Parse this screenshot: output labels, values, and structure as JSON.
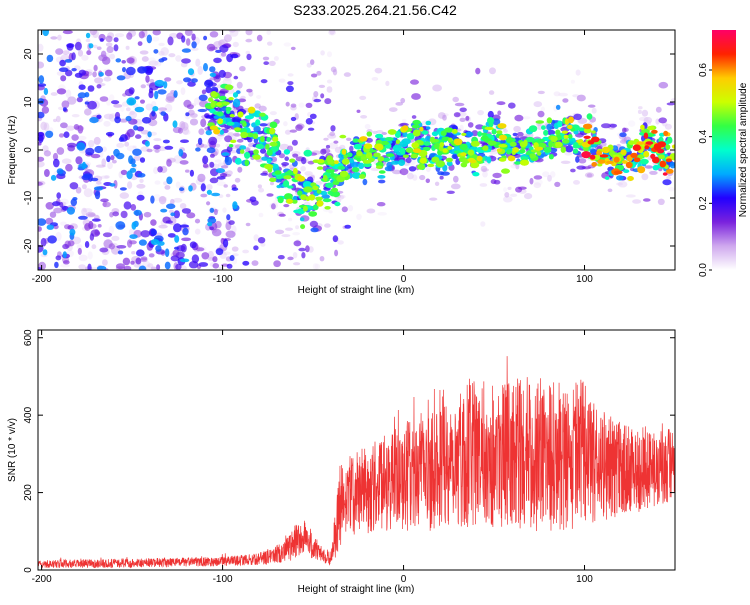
{
  "figure_title": "S233.2025.264.21.56.C42",
  "colors": {
    "snr_line": "#ee3333",
    "frame": "#000000"
  },
  "chart_data": [
    {
      "type": "heatmap",
      "name": "spectrogram",
      "title": "S233.2025.264.21.56.C42",
      "xlabel": "Height of straight line (km)",
      "ylabel": "Frequency (Hz)",
      "xlim": [
        -202,
        150
      ],
      "ylim": [
        -25,
        25
      ],
      "x_ticks": [
        -200,
        -100,
        0,
        100
      ],
      "y_ticks": [
        -20,
        -10,
        0,
        10,
        20
      ],
      "grid": false,
      "colorbar": {
        "label": "Normalized spectral amplitude",
        "range": [
          0.0,
          0.72
        ],
        "ticks": [
          0.0,
          0.2,
          0.4,
          0.6
        ],
        "tick_labels": [
          "0.0",
          "0.2",
          "0.4",
          "0.6"
        ],
        "colormap": [
          "#ffffff",
          "#cfa8ee",
          "#7a22dd",
          "#2200ff",
          "#00aaff",
          "#00ffcc",
          "#33ff44",
          "#ccff00",
          "#ffcc00",
          "#ff2200",
          "#ff0066"
        ]
      },
      "ridge_center_hz": [
        [
          -105,
          9
        ],
        [
          -95,
          6
        ],
        [
          -85,
          4
        ],
        [
          -78,
          3
        ],
        [
          -72,
          -1
        ],
        [
          -68,
          -4
        ],
        [
          -64,
          -6
        ],
        [
          -58,
          -7
        ],
        [
          -52,
          -9
        ],
        [
          -46,
          -7
        ],
        [
          -40,
          -5
        ],
        [
          -30,
          -2
        ],
        [
          -20,
          0
        ],
        [
          -10,
          0
        ],
        [
          0,
          1
        ],
        [
          10,
          1
        ],
        [
          20,
          0
        ],
        [
          30,
          1
        ],
        [
          40,
          0
        ],
        [
          50,
          2
        ],
        [
          60,
          1
        ],
        [
          70,
          0
        ],
        [
          80,
          2
        ],
        [
          90,
          3
        ],
        [
          100,
          3
        ],
        [
          105,
          1
        ],
        [
          110,
          -1
        ],
        [
          115,
          -3
        ],
        [
          120,
          -1
        ],
        [
          125,
          -2
        ],
        [
          130,
          0
        ],
        [
          135,
          1
        ],
        [
          140,
          0
        ],
        [
          148,
          -1
        ]
      ]
    },
    {
      "type": "line",
      "name": "snr",
      "xlabel": "Height of straight line (km)",
      "ylabel": "SNR (10 * v/v)",
      "xlim": [
        -202,
        150
      ],
      "ylim": [
        0,
        620
      ],
      "x_ticks": [
        -200,
        -100,
        0,
        100
      ],
      "y_ticks": [
        0,
        200,
        400,
        600
      ],
      "grid": false,
      "envelope": {
        "x": [
          -202,
          -150,
          -100,
          -80,
          -70,
          -60,
          -55,
          -50,
          -45,
          -40,
          -35,
          -30,
          -25,
          -20,
          -10,
          0,
          10,
          20,
          30,
          40,
          50,
          60,
          70,
          80,
          90,
          100,
          110,
          120,
          130,
          140,
          150
        ],
        "mean": [
          15,
          18,
          22,
          28,
          40,
          70,
          90,
          60,
          40,
          30,
          160,
          190,
          200,
          210,
          225,
          240,
          250,
          280,
          290,
          300,
          300,
          300,
          300,
          300,
          290,
          280,
          270,
          260,
          260,
          265,
          270
        ],
        "amplitude": [
          10,
          12,
          12,
          15,
          25,
          45,
          50,
          35,
          20,
          20,
          120,
          100,
          110,
          115,
          130,
          140,
          160,
          170,
          180,
          190,
          190,
          190,
          200,
          200,
          190,
          170,
          150,
          120,
          110,
          110,
          100
        ]
      }
    }
  ]
}
